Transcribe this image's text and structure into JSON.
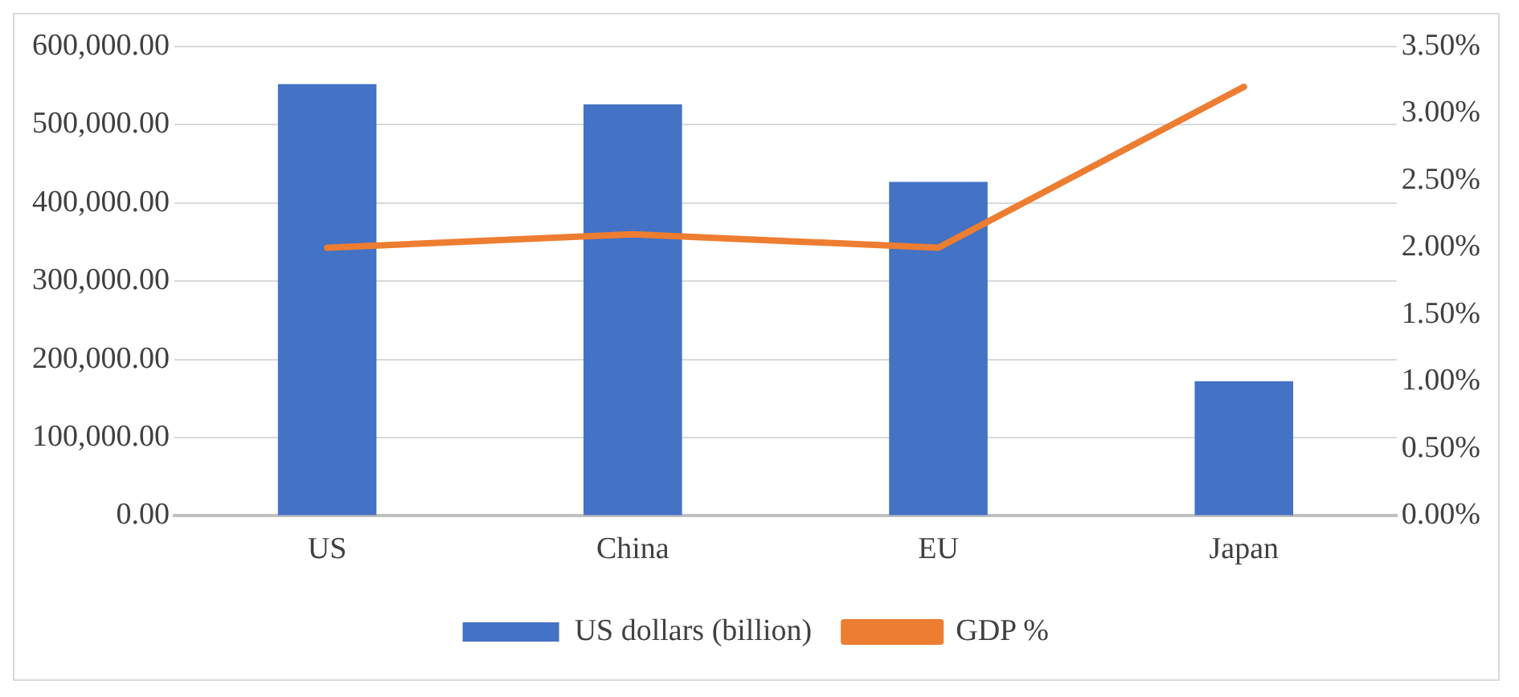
{
  "chart_data": {
    "type": "bar",
    "categories": [
      "US",
      "China",
      "EU",
      "Japan"
    ],
    "series": [
      {
        "name": "US dollars (billion)",
        "color": "#4472c4",
        "values": [
          552000,
          526000,
          427000,
          172000
        ]
      },
      {
        "name": "GDP %",
        "type": "line",
        "axis": "y2",
        "color": "#ed7d31",
        "values": [
          2.0,
          2.1,
          2.0,
          3.2
        ]
      }
    ],
    "ylim": [
      0,
      600000
    ],
    "yticks": [
      {
        "value": 0,
        "label": "0.00"
      },
      {
        "value": 100000,
        "label": "100,000.00"
      },
      {
        "value": 200000,
        "label": "200,000.00"
      },
      {
        "value": 300000,
        "label": "300,000.00"
      },
      {
        "value": 400000,
        "label": "400,000.00"
      },
      {
        "value": 500000,
        "label": "500,000.00"
      },
      {
        "value": 600000,
        "label": "600,000.00"
      }
    ],
    "y2lim": [
      0,
      3.5
    ],
    "y2ticks": [
      {
        "value": 0,
        "label": "0.00%"
      },
      {
        "value": 0.5,
        "label": "0.50%"
      },
      {
        "value": 1,
        "label": "1.00%"
      },
      {
        "value": 1.5,
        "label": "1.50%"
      },
      {
        "value": 2,
        "label": "2.00%"
      },
      {
        "value": 2.5,
        "label": "2.50%"
      },
      {
        "value": 3,
        "label": "3.00%"
      },
      {
        "value": 3.5,
        "label": "3.50%"
      }
    ],
    "grid": "y",
    "legend": "bottom",
    "marker": "none",
    "line_style": "solid"
  }
}
